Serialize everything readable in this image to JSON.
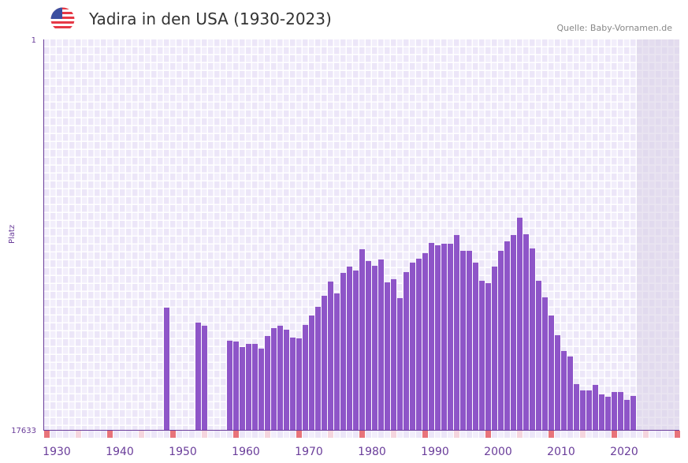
{
  "header": {
    "title": "Yadira in den USA (1930-2023)",
    "source": "Quelle: Baby-Vornamen.de",
    "flag_icon": "usa-flag-icon"
  },
  "colors": {
    "bar": "#8e55c8",
    "axis": "#6a3d9a",
    "decade_marker": "#e8737a",
    "half_decade_marker": "#f5d5de",
    "future_shade": "#e3deed"
  },
  "chart_data": {
    "type": "bar",
    "title": "Yadira in den USA (1930-2023)",
    "xlabel": "",
    "ylabel": "Platz",
    "y_tick_labels": [
      "1",
      "17633"
    ],
    "ylim": [
      1,
      17633
    ],
    "y_inverted": true,
    "xlim": [
      1929,
      2028
    ],
    "x_tick_labels": [
      "1930",
      "1940",
      "1950",
      "1960",
      "1970",
      "1980",
      "1990",
      "2000",
      "2010",
      "2020"
    ],
    "grid": true,
    "years": [
      1948,
      1953,
      1954,
      1958,
      1959,
      1960,
      1961,
      1962,
      1963,
      1964,
      1965,
      1966,
      1967,
      1968,
      1969,
      1970,
      1971,
      1972,
      1973,
      1974,
      1975,
      1976,
      1977,
      1978,
      1979,
      1980,
      1981,
      1982,
      1983,
      1984,
      1985,
      1986,
      1987,
      1988,
      1989,
      1990,
      1991,
      1992,
      1993,
      1994,
      1995,
      1996,
      1997,
      1998,
      1999,
      2000,
      2001,
      2002,
      2003,
      2004,
      2005,
      2006,
      2007,
      2008,
      2009,
      2010,
      2011,
      2012,
      2013,
      2014,
      2015,
      2016,
      2017,
      2018,
      2019,
      2020,
      2021,
      2022
    ],
    "ranks": [
      12111,
      12788,
      12930,
      13607,
      13643,
      13892,
      13750,
      13750,
      13964,
      13394,
      13038,
      12930,
      13109,
      13465,
      13500,
      12895,
      12467,
      12075,
      11577,
      10935,
      11470,
      10544,
      10259,
      10437,
      9475,
      10009,
      10223,
      9938,
      10971,
      10828,
      11683,
      10508,
      10080,
      9902,
      9653,
      9190,
      9297,
      9226,
      9226,
      8834,
      9547,
      9547,
      10080,
      10900,
      11007,
      10259,
      9547,
      9119,
      8834,
      8051,
      8799,
      9440,
      10900,
      11648,
      12467,
      13358,
      14071,
      14320,
      15566,
      15852,
      15852,
      15602,
      16030,
      16137,
      15923,
      15923,
      16279,
      16101
    ]
  }
}
